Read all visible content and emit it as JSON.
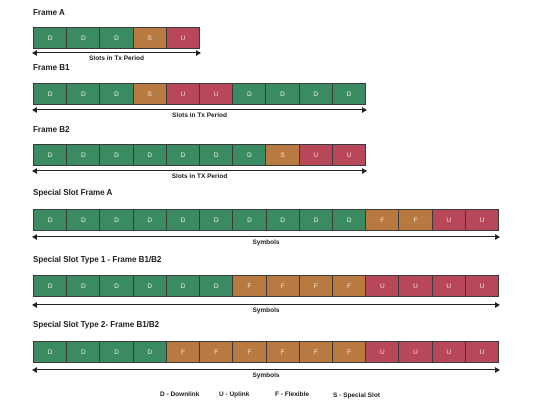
{
  "frames": [
    {
      "title": "Frame A",
      "slots": [
        "D",
        "D",
        "D",
        "S",
        "U"
      ],
      "arrow_label": "Slots in Tx Period"
    },
    {
      "title": "Frame B1",
      "slots": [
        "D",
        "D",
        "D",
        "S",
        "U",
        "U",
        "D",
        "D",
        "D",
        "D"
      ],
      "arrow_label": "Slots in Tx Period"
    },
    {
      "title": "Frame B2",
      "slots": [
        "D",
        "D",
        "D",
        "D",
        "D",
        "D",
        "D",
        "S",
        "U",
        "U"
      ],
      "arrow_label": "Slots in TX Period"
    },
    {
      "title": "Special Slot Frame A",
      "slots": [
        "D",
        "D",
        "D",
        "D",
        "D",
        "D",
        "D",
        "D",
        "D",
        "D",
        "F",
        "F",
        "U",
        "U"
      ],
      "arrow_label": "Symbols"
    },
    {
      "title": "Special Slot Type 1 - Frame B1/B2",
      "slots": [
        "D",
        "D",
        "D",
        "D",
        "D",
        "D",
        "F",
        "F",
        "F",
        "F",
        "U",
        "U",
        "U",
        "U"
      ],
      "arrow_label": "Symbols"
    },
    {
      "title": "Special Slot Type 2- Frame B1/B2",
      "slots": [
        "D",
        "D",
        "D",
        "D",
        "F",
        "F",
        "F",
        "F",
        "F",
        "F",
        "U",
        "U",
        "U",
        "U"
      ],
      "arrow_label": "Symbols"
    }
  ],
  "legend": {
    "downlink": "D - Downlink",
    "uplink": "U - Uplink",
    "flexible": "F - Flexible",
    "special": "S - Special Slot"
  },
  "colors": {
    "downlink": "#3a8a62",
    "uplink": "#b8475a",
    "flexible_special": "#b97a41"
  }
}
